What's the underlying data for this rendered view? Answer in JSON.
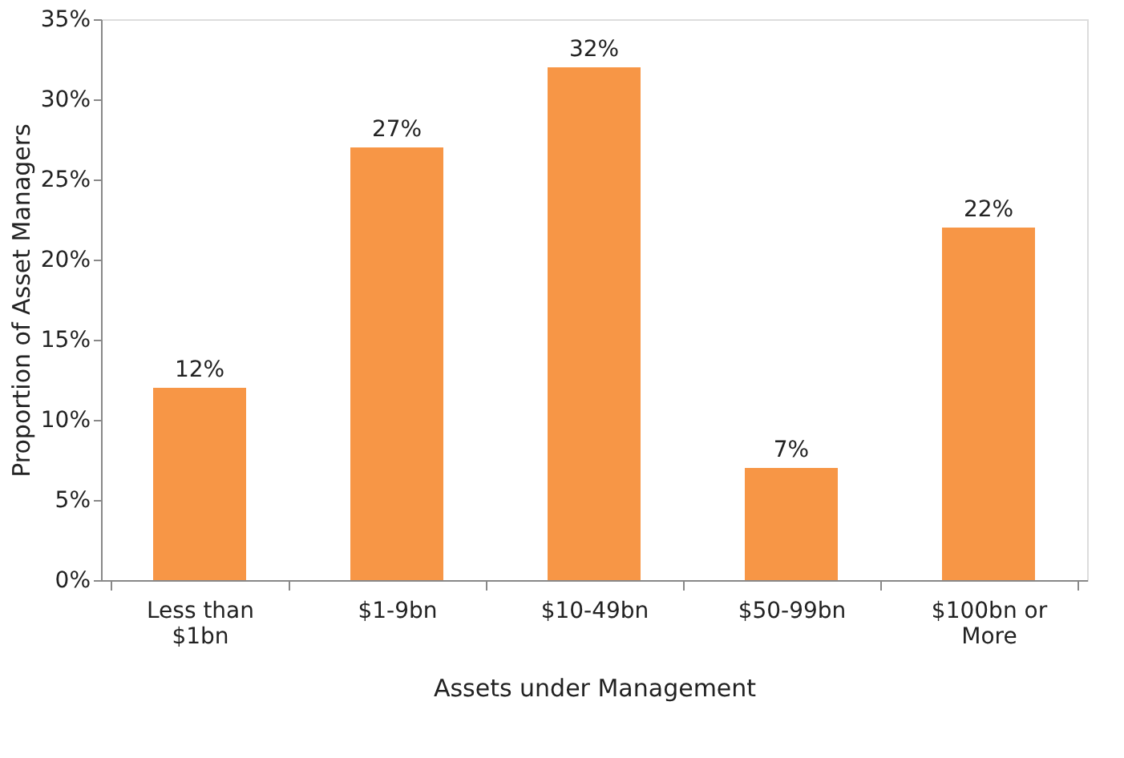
{
  "chart_data": {
    "type": "bar",
    "xlabel": "Assets under Management",
    "ylabel": "Proportion of Asset Managers",
    "categories": [
      "Less than $1bn",
      "$1-9bn",
      "$10-49bn",
      "$50-99bn",
      "$100bn or More"
    ],
    "values": [
      12,
      27,
      32,
      7,
      22
    ],
    "value_labels": [
      "12%",
      "27%",
      "32%",
      "7%",
      "22%"
    ],
    "color": "#f79646",
    "ylim": [
      0,
      35
    ],
    "yticks": [
      {
        "value": 0,
        "label": "0%"
      },
      {
        "value": 5,
        "label": "5%"
      },
      {
        "value": 10,
        "label": "10%"
      },
      {
        "value": 15,
        "label": "15%"
      },
      {
        "value": 20,
        "label": "20%"
      },
      {
        "value": 25,
        "label": "25%"
      },
      {
        "value": 30,
        "label": "30%"
      },
      {
        "value": 35,
        "label": "35%"
      }
    ],
    "grid": false
  }
}
